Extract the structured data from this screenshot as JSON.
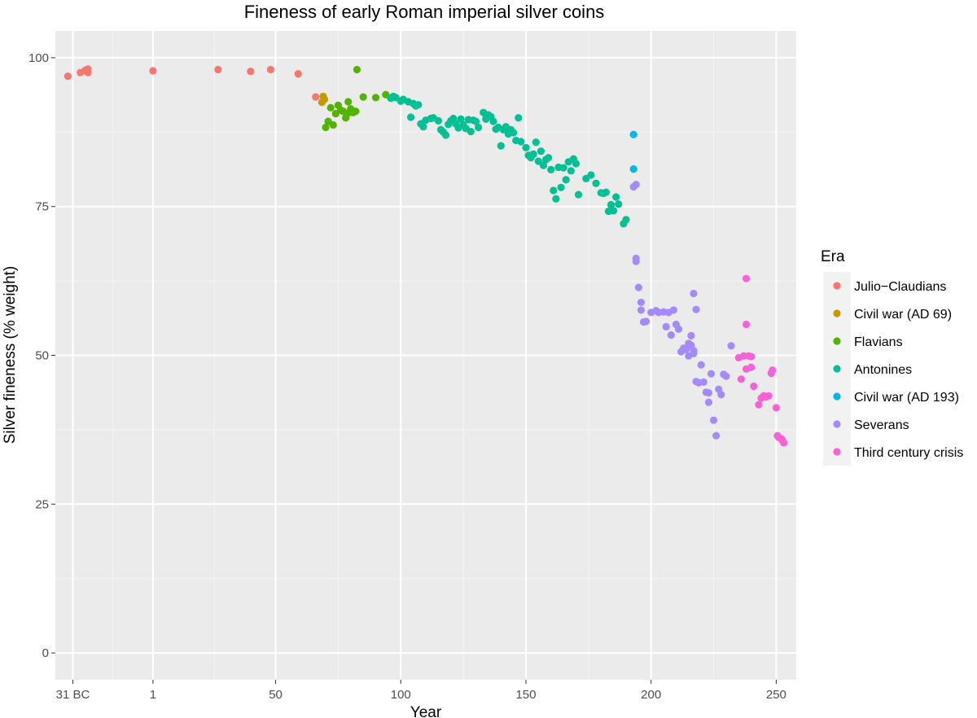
{
  "chart_data": {
    "type": "scatter",
    "title": "Fineness of early Roman imperial silver coins",
    "xlabel": "Year",
    "ylabel": "Silver fineness (% weight)",
    "xlim": [
      -38,
      258
    ],
    "ylim": [
      -4.5,
      104.5
    ],
    "xticks": [
      {
        "value": -31,
        "label": "31 BC"
      },
      {
        "value": 1,
        "label": "1"
      },
      {
        "value": 50,
        "label": "50"
      },
      {
        "value": 100,
        "label": "100"
      },
      {
        "value": 150,
        "label": "150"
      },
      {
        "value": 200,
        "label": "200"
      },
      {
        "value": 250,
        "label": "250"
      }
    ],
    "yticks": [
      {
        "value": 0,
        "label": "0"
      },
      {
        "value": 25,
        "label": "25"
      },
      {
        "value": 50,
        "label": "50"
      },
      {
        "value": 75,
        "label": "75"
      },
      {
        "value": 100,
        "label": "100"
      }
    ],
    "grid": true,
    "legend": {
      "title": "Era",
      "position": "right"
    },
    "series": [
      {
        "name": "Julio−Claudians",
        "color": "#F8766D",
        "points": [
          [
            -33,
            96.9
          ],
          [
            -28,
            97.5
          ],
          [
            -26,
            97.9
          ],
          [
            -25,
            97.5
          ],
          [
            -25,
            98.1
          ],
          [
            1,
            97.8
          ],
          [
            27,
            98.0
          ],
          [
            40,
            97.7
          ],
          [
            48,
            98.0
          ],
          [
            59,
            97.3
          ],
          [
            66,
            93.4
          ]
        ]
      },
      {
        "name": "Civil war (AD 69)",
        "color": "#C49A00",
        "points": [
          [
            69,
            93.5
          ],
          [
            68.5,
            92.5
          ],
          [
            69.5,
            93.0
          ]
        ]
      },
      {
        "name": "Flavians",
        "color": "#53B400",
        "points": [
          [
            70,
            88.3
          ],
          [
            71,
            89.3
          ],
          [
            72,
            91.6
          ],
          [
            73,
            88.7
          ],
          [
            74,
            90.6
          ],
          [
            75,
            92.0
          ],
          [
            76,
            91.2
          ],
          [
            77,
            91.0
          ],
          [
            78,
            89.9
          ],
          [
            79,
            92.6
          ],
          [
            79.5,
            90.8
          ],
          [
            80,
            91.4
          ],
          [
            81,
            90.8
          ],
          [
            82,
            91.0
          ],
          [
            82.5,
            98.0
          ],
          [
            85,
            93.4
          ],
          [
            90,
            93.3
          ],
          [
            94,
            93.8
          ]
        ]
      },
      {
        "name": "Antonines",
        "color": "#00C094",
        "points": [
          [
            96,
            93.2
          ],
          [
            97,
            93.5
          ],
          [
            98,
            93.3
          ],
          [
            100,
            92.7
          ],
          [
            101,
            93.0
          ],
          [
            103,
            92.6
          ],
          [
            104,
            90.0
          ],
          [
            105,
            92.3
          ],
          [
            106,
            91.9
          ],
          [
            107,
            92.1
          ],
          [
            108,
            88.9
          ],
          [
            109,
            88.4
          ],
          [
            110,
            89.5
          ],
          [
            112,
            89.8
          ],
          [
            113,
            89.9
          ],
          [
            115,
            89.4
          ],
          [
            116,
            87.9
          ],
          [
            117,
            87.5
          ],
          [
            118,
            87.0
          ],
          [
            119,
            88.8
          ],
          [
            120,
            89.4
          ],
          [
            121,
            89.8
          ],
          [
            122,
            88.9
          ],
          [
            123,
            88.2
          ],
          [
            124,
            89.7
          ],
          [
            125,
            88.7
          ],
          [
            126,
            88.1
          ],
          [
            127,
            89.6
          ],
          [
            128,
            87.6
          ],
          [
            129,
            89.5
          ],
          [
            130,
            89.3
          ],
          [
            131,
            88.3
          ],
          [
            133,
            90.8
          ],
          [
            134,
            89.7
          ],
          [
            135,
            90.4
          ],
          [
            136,
            90.1
          ],
          [
            137,
            89.3
          ],
          [
            138,
            88.0
          ],
          [
            139,
            88.3
          ],
          [
            140,
            85.2
          ],
          [
            141,
            87.9
          ],
          [
            142,
            88.4
          ],
          [
            143,
            87.2
          ],
          [
            144,
            87.9
          ],
          [
            145,
            87.4
          ],
          [
            146,
            86.1
          ],
          [
            147,
            89.9
          ],
          [
            148,
            85.9
          ],
          [
            150,
            84.9
          ],
          [
            151,
            83.6
          ],
          [
            152,
            83.2
          ],
          [
            153,
            83.8
          ],
          [
            154,
            85.8
          ],
          [
            155,
            82.6
          ],
          [
            156,
            84.3
          ],
          [
            157,
            81.9
          ],
          [
            158,
            82.9
          ],
          [
            159,
            83.2
          ],
          [
            160,
            81.2
          ],
          [
            161,
            77.7
          ],
          [
            162,
            76.3
          ],
          [
            163,
            81.6
          ],
          [
            164,
            78.2
          ],
          [
            165,
            81.5
          ],
          [
            166,
            79.5
          ],
          [
            167,
            82.5
          ],
          [
            168,
            81.0
          ],
          [
            169,
            83.0
          ],
          [
            170,
            82.2
          ],
          [
            171,
            77.0
          ],
          [
            174,
            79.7
          ],
          [
            176,
            80.3
          ],
          [
            178,
            78.9
          ],
          [
            180,
            77.3
          ],
          [
            181,
            77.2
          ],
          [
            182,
            77.4
          ],
          [
            183,
            74.2
          ],
          [
            184,
            75.3
          ],
          [
            185,
            74.3
          ],
          [
            186,
            76.6
          ],
          [
            187,
            75.4
          ],
          [
            189,
            72.1
          ],
          [
            190,
            72.8
          ]
        ]
      },
      {
        "name": "Civil war (AD 193)",
        "color": "#00B6EB",
        "points": [
          [
            193,
            87.1
          ],
          [
            193,
            81.3
          ]
        ]
      },
      {
        "name": "Severans",
        "color": "#A58AFF",
        "points": [
          [
            193,
            78.3
          ],
          [
            194,
            78.7
          ],
          [
            194,
            66.3
          ],
          [
            194,
            65.8
          ],
          [
            195,
            61.4
          ],
          [
            196,
            58.9
          ],
          [
            196,
            57.6
          ],
          [
            197,
            55.6
          ],
          [
            198,
            55.7
          ],
          [
            200,
            57.2
          ],
          [
            202,
            57.5
          ],
          [
            203,
            57.2
          ],
          [
            205,
            57.3
          ],
          [
            206,
            54.8
          ],
          [
            207,
            57.2
          ],
          [
            208,
            53.4
          ],
          [
            209,
            57.6
          ],
          [
            210,
            55.2
          ],
          [
            211,
            54.4
          ],
          [
            212,
            50.6
          ],
          [
            213,
            51.2
          ],
          [
            214,
            51.0
          ],
          [
            215,
            49.9
          ],
          [
            215,
            52.0
          ],
          [
            216,
            53.3
          ],
          [
            216,
            51.7
          ],
          [
            217,
            50.8
          ],
          [
            217,
            50.3
          ],
          [
            217,
            60.4
          ],
          [
            218,
            57.7
          ],
          [
            218,
            45.6
          ],
          [
            219,
            45.4
          ],
          [
            220,
            48.4
          ],
          [
            221,
            45.5
          ],
          [
            222,
            43.8
          ],
          [
            223,
            42.1
          ],
          [
            223,
            43.7
          ],
          [
            224,
            46.9
          ],
          [
            225,
            39.1
          ],
          [
            226,
            36.5
          ],
          [
            227,
            44.3
          ],
          [
            228,
            43.4
          ],
          [
            229,
            46.8
          ],
          [
            230,
            46.5
          ],
          [
            232,
            51.6
          ]
        ]
      },
      {
        "name": "Third century crisis",
        "color": "#FB61D7",
        "points": [
          [
            235,
            49.6
          ],
          [
            236,
            46.0
          ],
          [
            237,
            49.9
          ],
          [
            238,
            62.9
          ],
          [
            238,
            55.2
          ],
          [
            238,
            47.7
          ],
          [
            239,
            49.9
          ],
          [
            240,
            48.0
          ],
          [
            240,
            49.8
          ],
          [
            241,
            44.8
          ],
          [
            243,
            41.7
          ],
          [
            244,
            42.8
          ],
          [
            245,
            43.2
          ],
          [
            246,
            43.0
          ],
          [
            247,
            43.2
          ],
          [
            248,
            47.0
          ],
          [
            248.5,
            47.5
          ],
          [
            250,
            41.2
          ],
          [
            250.5,
            36.5
          ],
          [
            251,
            36.2
          ],
          [
            252,
            36.0
          ],
          [
            252.5,
            35.7
          ],
          [
            253,
            35.3
          ]
        ]
      }
    ]
  }
}
